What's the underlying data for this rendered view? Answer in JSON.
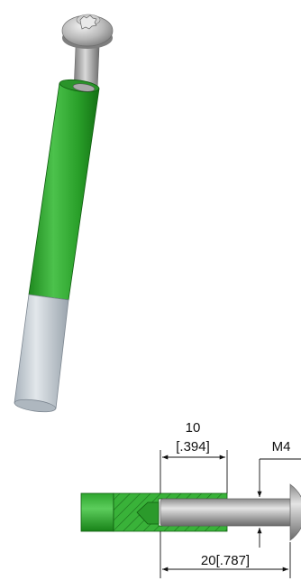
{
  "dimensions": {
    "insert_length_metric": "10",
    "insert_length_inch": "[.394]",
    "thread_size": "M4",
    "overall_length": "20[.787]"
  },
  "colors": {
    "insert_green": "#2ea02e",
    "insert_green_dark": "#157a15",
    "insert_green_light": "#5fd35f",
    "aluminum": "#c9d1d8",
    "steel": "#a9a9a9",
    "hatch": "#1d6e1d",
    "dimension_line": "#111111"
  },
  "icons": {
    "screw_head": "torx-button-head-icon",
    "rod": "cylinder-rod-icon"
  }
}
